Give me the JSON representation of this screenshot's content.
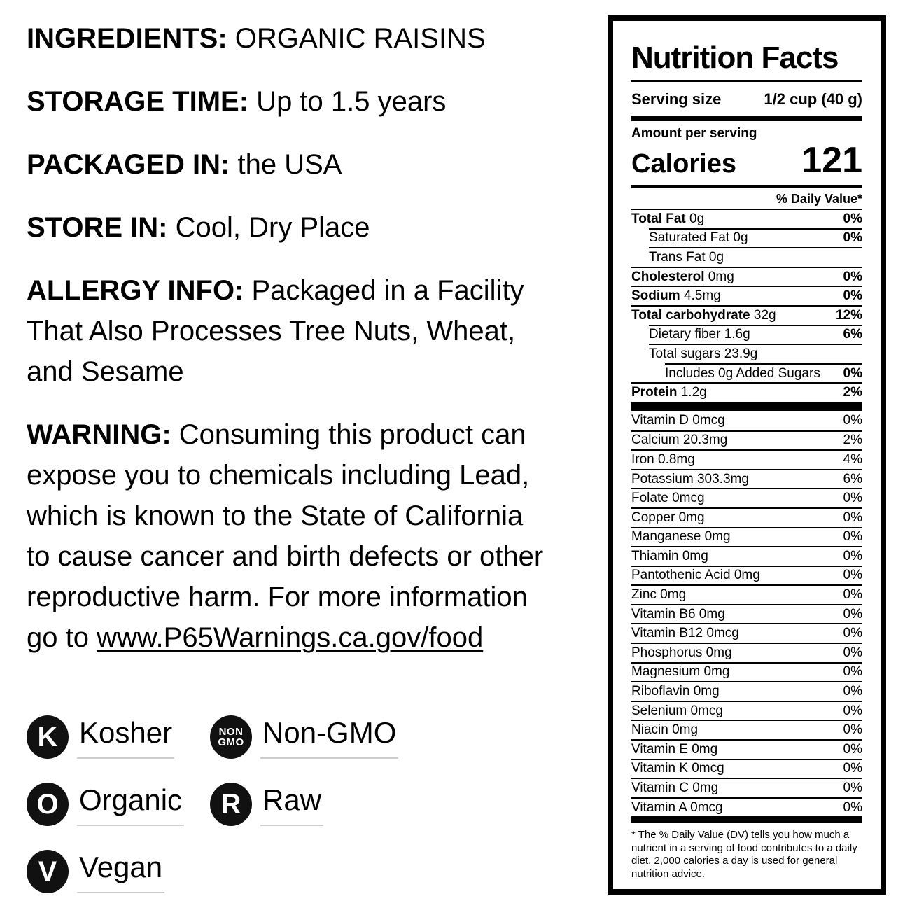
{
  "colors": {
    "text": "#000000",
    "badge_bg": "#111111",
    "underline_gray": "#cccccc"
  },
  "info_sections": [
    {
      "label": "INGREDIENTS:",
      "text": " ORGANIC RAISINS"
    },
    {
      "label": "STORAGE TIME:",
      "text": " Up to 1.5 years"
    },
    {
      "label": "PACKAGED IN:",
      "text": " the USA"
    },
    {
      "label": "STORE IN:",
      "text": " Cool, Dry Place"
    },
    {
      "label": "ALLERGY INFO:",
      "text": " Packaged in a Facility That Also Processes Tree Nuts, Wheat, and Sesame"
    },
    {
      "label": "WARNING:",
      "text": " Consuming this product can expose you to chemicals including Lead, which is known to the State of California to cause cancer and birth defects or other reproductive harm. For more information go to ",
      "link": "www.P65Warnings.ca.gov/food"
    }
  ],
  "badges": [
    {
      "icon_lines": [
        "K"
      ],
      "label": "Kosher"
    },
    {
      "icon_lines": [
        "NON",
        "GMO"
      ],
      "label": "Non-GMO"
    },
    {
      "icon_lines": [
        "O"
      ],
      "label": "Organic"
    },
    {
      "icon_lines": [
        "R"
      ],
      "label": "Raw"
    },
    {
      "icon_lines": [
        "V"
      ],
      "label": "Vegan"
    }
  ],
  "nutrition": {
    "title": "Nutrition Facts",
    "serving_size_label": "Serving size",
    "serving_size_value": "1/2 cup (40 g)",
    "amount_per_serving": "Amount per serving",
    "calories_label": "Calories",
    "calories_value": "121",
    "daily_value_header": "% Daily Value*",
    "macro_rows": [
      {
        "bold": "Total Fat",
        "text": " 0g",
        "dv": "0%",
        "indent": 0
      },
      {
        "bold": "",
        "text": "Saturated Fat 0g",
        "dv": "0%",
        "indent": 1
      },
      {
        "bold": "",
        "text": "Trans Fat 0g",
        "dv": "",
        "indent": 1
      },
      {
        "bold": "Cholesterol",
        "text": " 0mg",
        "dv": "0%",
        "indent": 0
      },
      {
        "bold": "Sodium",
        "text": " 4.5mg",
        "dv": "0%",
        "indent": 0
      },
      {
        "bold": "Total carbohydrate",
        "text": " 32g",
        "dv": "12%",
        "indent": 0
      },
      {
        "bold": "",
        "text": "Dietary fiber 1.6g",
        "dv": "6%",
        "indent": 1
      },
      {
        "bold": "",
        "text": "Total sugars 23.9g",
        "dv": "",
        "indent": 1
      },
      {
        "bold": "",
        "text": "Includes 0g Added Sugars",
        "dv": "0%",
        "indent": 2
      },
      {
        "bold": "Protein",
        "text": " 1.2g",
        "dv": "2%",
        "indent": 0
      }
    ],
    "vitamin_rows": [
      {
        "text": "Vitamin D 0mcg",
        "dv": "0%"
      },
      {
        "text": "Calcium 20.3mg",
        "dv": "2%"
      },
      {
        "text": "Iron 0.8mg",
        "dv": "4%"
      },
      {
        "text": "Potassium 303.3mg",
        "dv": "6%"
      },
      {
        "text": "Folate 0mcg",
        "dv": "0%"
      },
      {
        "text": "Copper 0mg",
        "dv": "0%"
      },
      {
        "text": "Manganese 0mg",
        "dv": "0%"
      },
      {
        "text": "Thiamin 0mg",
        "dv": "0%"
      },
      {
        "text": "Pantothenic Acid 0mg",
        "dv": "0%"
      },
      {
        "text": "Zinc 0mg",
        "dv": "0%"
      },
      {
        "text": "Vitamin B6 0mg",
        "dv": "0%"
      },
      {
        "text": "Vitamin B12 0mcg",
        "dv": "0%"
      },
      {
        "text": "Phosphorus 0mg",
        "dv": "0%"
      },
      {
        "text": "Magnesium 0mg",
        "dv": "0%"
      },
      {
        "text": "Riboflavin 0mg",
        "dv": "0%"
      },
      {
        "text": "Selenium 0mcg",
        "dv": "0%"
      },
      {
        "text": "Niacin 0mg",
        "dv": "0%"
      },
      {
        "text": "Vitamin E 0mg",
        "dv": "0%"
      },
      {
        "text": "Vitamin K 0mcg",
        "dv": "0%"
      },
      {
        "text": "Vitamin C 0mg",
        "dv": "0%"
      },
      {
        "text": "Vitamin A 0mcg",
        "dv": "0%"
      }
    ],
    "footnote": "* The % Daily Value (DV) tells you how much a nutrient in a serving of food contributes to a daily diet. 2,000 calories a day is used for general nutrition advice."
  }
}
